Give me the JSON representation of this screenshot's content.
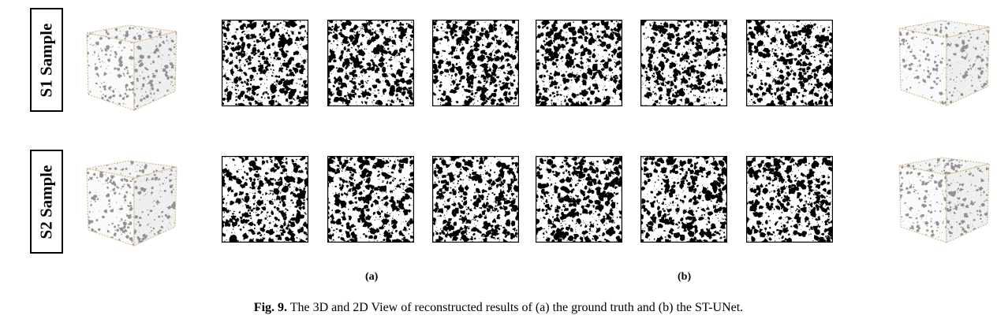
{
  "rows": [
    {
      "label": "S1 Sample"
    },
    {
      "label": "S2 Sample"
    }
  ],
  "panels": [
    "(a)",
    "(b)"
  ],
  "caption": {
    "figure": "Fig. 9.",
    "text": "The 3D and 2D View of reconstructed results of (a) the ground truth and (b) the ST-UNet."
  },
  "colors": {
    "pore": "#000000",
    "solid": "#ffffff",
    "cube_texture": "#808080",
    "cube_edge": "#d8b88a"
  }
}
